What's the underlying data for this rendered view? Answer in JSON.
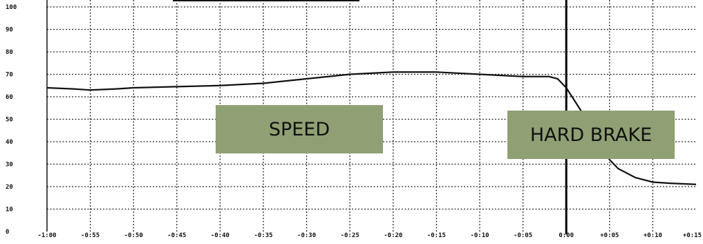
{
  "chart_data": {
    "type": "line",
    "y_ticks": [
      "0",
      "10",
      "20",
      "30",
      "40",
      "50",
      "60",
      "70",
      "80",
      "90",
      "100"
    ],
    "ylim": [
      0,
      100
    ],
    "x_ticks": [
      "-1:00",
      "-0:55",
      "-0:50",
      "-0:45",
      "-0:40",
      "-0:35",
      "-0:30",
      "-0:25",
      "-0:20",
      "-0:15",
      "-0:10",
      "-0:05",
      "0:00",
      "+0:05",
      "+0:10",
      "+0:15"
    ],
    "xlim": [
      -60,
      15
    ],
    "grid": true,
    "series": [
      {
        "x": [
          -60,
          -57,
          -55,
          -52,
          -50,
          -45,
          -40,
          -35,
          -30,
          -25,
          -20,
          -15,
          -10,
          -5,
          -2,
          -1,
          0,
          1,
          2,
          3,
          4,
          5,
          6,
          8,
          10,
          12,
          15
        ],
        "y": [
          64,
          63.5,
          63,
          63.5,
          64,
          64.5,
          65,
          66,
          68,
          70,
          71,
          71,
          70,
          69,
          69,
          68,
          64,
          58,
          52,
          45,
          38,
          32,
          28,
          24,
          22,
          21.5,
          21
        ]
      }
    ],
    "marker_x": 0,
    "annotations": [
      {
        "text": "SPEED"
      },
      {
        "text": "HARD BRAKE"
      }
    ]
  }
}
